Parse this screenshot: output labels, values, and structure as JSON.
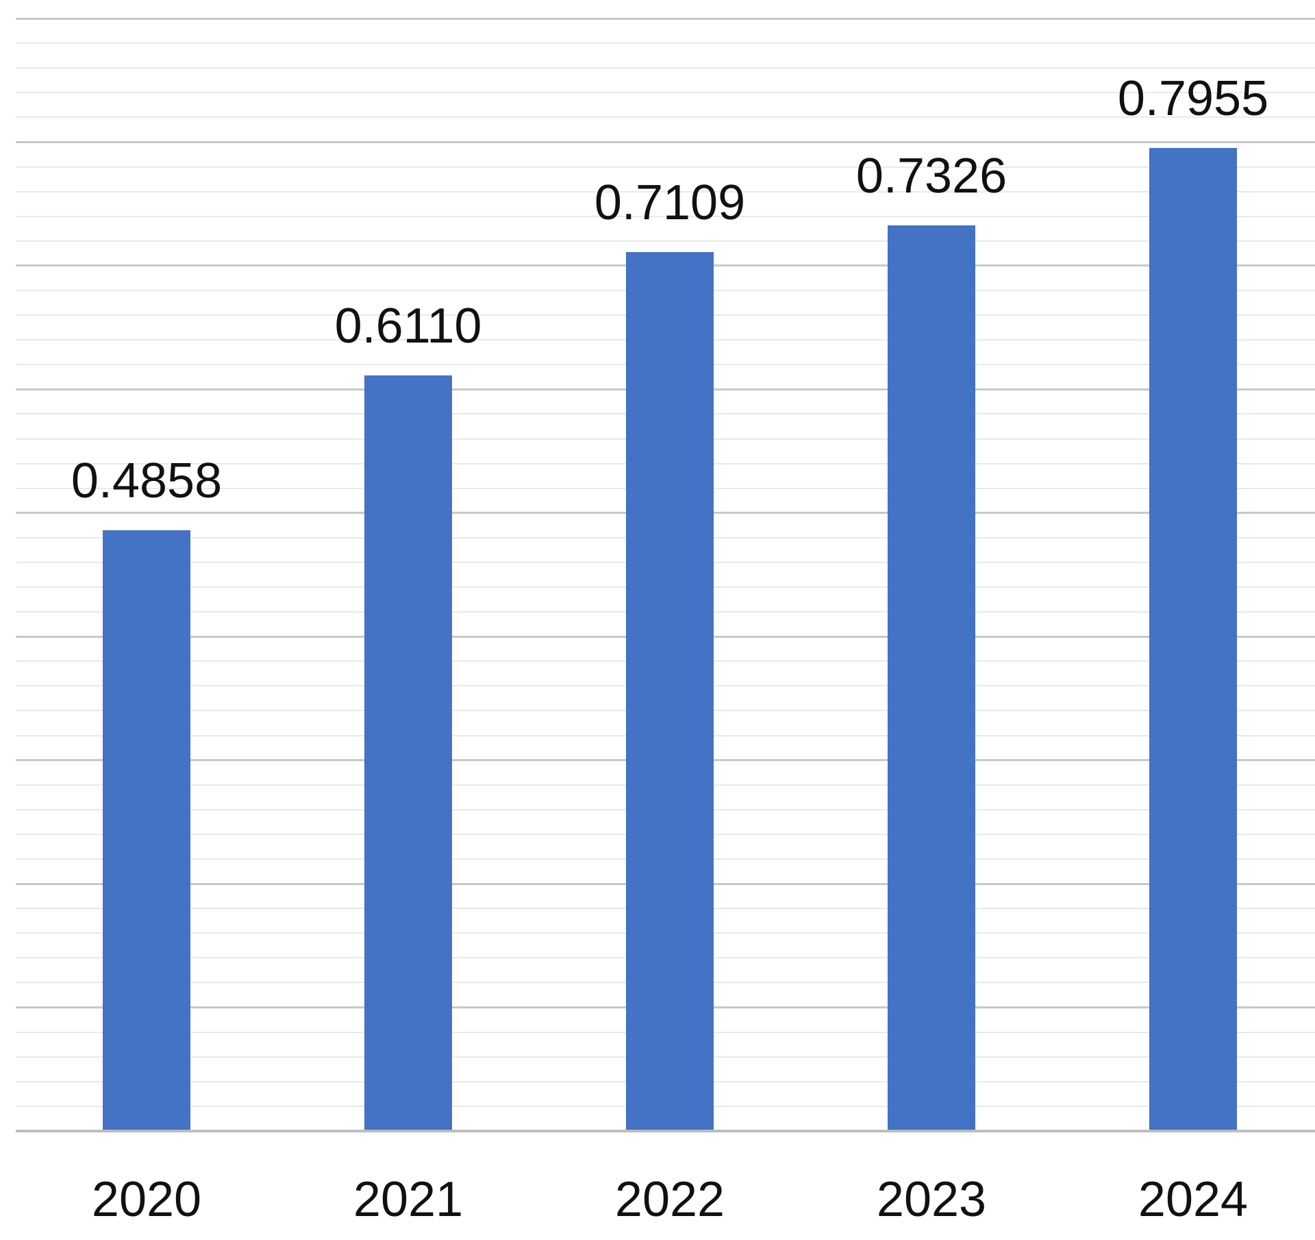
{
  "chart_data": {
    "type": "bar",
    "title": "",
    "xlabel": "",
    "ylabel": "",
    "categories": [
      "2020",
      "2021",
      "2022",
      "2023",
      "2024"
    ],
    "values": [
      0.4858,
      0.611,
      0.7109,
      0.7326,
      0.7955
    ],
    "value_labels": [
      "0.4858",
      "0.6110",
      "0.7109",
      "0.7326",
      "0.7955"
    ],
    "series_name": "",
    "legend": "none",
    "ylim": [
      0,
      0.9
    ],
    "major_grid_step": 0.1,
    "minor_grid_step": 0.02,
    "grid": "horizontal major and minor gridlines, no vertical gridlines, no value-axis tick labels",
    "colors": {
      "bar": "#4472C4",
      "major_gridline": "#C8C8C8",
      "minor_gridline": "#E9E9E9",
      "axis_line": "#BDBDBD",
      "label_text": "#111111",
      "background": "#FFFFFF"
    }
  }
}
